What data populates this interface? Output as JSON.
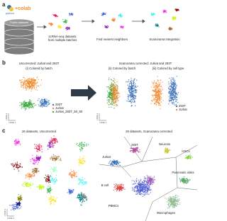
{
  "panel_a": {
    "label": "a",
    "logo_python": "python",
    "logo_colab": "+colab",
    "database": "Public datasets",
    "step1": [
      "scRNA-seq datasets",
      "from multiple batches"
    ],
    "step2": "Find nearest neighbors",
    "step3": "Scanorama integration"
  },
  "panel_b": {
    "label": "b",
    "left_title": "Uncorrected: Jurkat and 293T",
    "left_subtitle": "(i) Colored by batch",
    "right_title": "Scanorama corrected: Jurkat and 293T",
    "mid_subtitle": "(ii) Colored by batch",
    "right_subtitle": "(iii) Colored by cell type",
    "x_axis": "t-SNE 1",
    "y_axis": "t-SNE 2",
    "legend_batch": [
      "293T",
      "Jurkat",
      "Jurkat_293T_50_50"
    ],
    "legend_type": [
      "293T",
      "Jurkat"
    ]
  },
  "panel_c": {
    "label": "c",
    "left_title": "26 datasets, Uncorrected",
    "right_title": "26 datasets, Scanorama corrected",
    "x_axis": "t-SNE 1",
    "y_axis": "t-SNE 2",
    "clusters": [
      "293T",
      "Neurons",
      "HSCs",
      "Jurkat",
      "Pancreatic islets",
      "B cell",
      "PBMCs",
      "Macrophages"
    ]
  }
}
